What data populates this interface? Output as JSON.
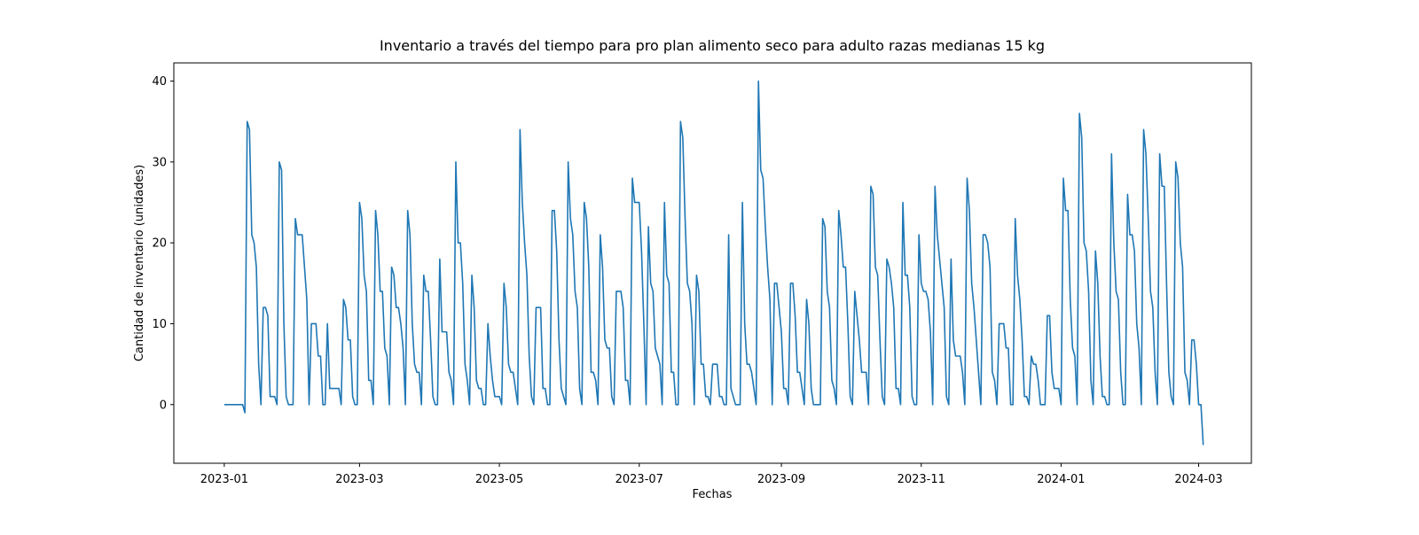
{
  "chart_data": {
    "type": "line",
    "title": "Inventario a través del tiempo para pro plan alimento seco para adulto razas medianas 15 kg",
    "x_label": "Fechas",
    "y_label": "Cantidad de inventario (unidades)",
    "grid": false,
    "xlim": [
      "2022-12-10",
      "2024-03-24"
    ],
    "ylim": [
      -7.25,
      42.25
    ],
    "xticks": [
      {
        "value": "2023-01-01",
        "label": "2023-01"
      },
      {
        "value": "2023-03-01",
        "label": "2023-03"
      },
      {
        "value": "2023-05-01",
        "label": "2023-05"
      },
      {
        "value": "2023-07-01",
        "label": "2023-07"
      },
      {
        "value": "2023-09-01",
        "label": "2023-09"
      },
      {
        "value": "2023-11-01",
        "label": "2023-11"
      },
      {
        "value": "2024-01-01",
        "label": "2024-01"
      },
      {
        "value": "2024-03-01",
        "label": "2024-03"
      }
    ],
    "yticks": [
      0,
      10,
      20,
      30,
      40
    ],
    "x": [
      "2023-01-01",
      "2023-01-02",
      "2023-01-03",
      "2023-01-04",
      "2023-01-05",
      "2023-01-06",
      "2023-01-07",
      "2023-01-08",
      "2023-01-09",
      "2023-01-10",
      "2023-01-11",
      "2023-01-12",
      "2023-01-13",
      "2023-01-14",
      "2023-01-15",
      "2023-01-16",
      "2023-01-17",
      "2023-01-18",
      "2023-01-19",
      "2023-01-20",
      "2023-01-21",
      "2023-01-22",
      "2023-01-23",
      "2023-01-24",
      "2023-01-25",
      "2023-01-26",
      "2023-01-27",
      "2023-01-28",
      "2023-01-29",
      "2023-01-30",
      "2023-01-31",
      "2023-02-01",
      "2023-02-02",
      "2023-02-03",
      "2023-02-04",
      "2023-02-05",
      "2023-02-06",
      "2023-02-07",
      "2023-02-08",
      "2023-02-09",
      "2023-02-10",
      "2023-02-11",
      "2023-02-12",
      "2023-02-13",
      "2023-02-14",
      "2023-02-15",
      "2023-02-16",
      "2023-02-17",
      "2023-02-18",
      "2023-02-19",
      "2023-02-20",
      "2023-02-21",
      "2023-02-22",
      "2023-02-23",
      "2023-02-24",
      "2023-02-25",
      "2023-02-26",
      "2023-02-27",
      "2023-02-28",
      "2023-03-01",
      "2023-03-02",
      "2023-03-03",
      "2023-03-04",
      "2023-03-05",
      "2023-03-06",
      "2023-03-07",
      "2023-03-08",
      "2023-03-09",
      "2023-03-10",
      "2023-03-11",
      "2023-03-12",
      "2023-03-13",
      "2023-03-14",
      "2023-03-15",
      "2023-03-16",
      "2023-03-17",
      "2023-03-18",
      "2023-03-19",
      "2023-03-20",
      "2023-03-21",
      "2023-03-22",
      "2023-03-23",
      "2023-03-24",
      "2023-03-25",
      "2023-03-26",
      "2023-03-27",
      "2023-03-28",
      "2023-03-29",
      "2023-03-30",
      "2023-03-31",
      "2023-04-01",
      "2023-04-02",
      "2023-04-03",
      "2023-04-04",
      "2023-04-05",
      "2023-04-06",
      "2023-04-07",
      "2023-04-08",
      "2023-04-09",
      "2023-04-10",
      "2023-04-11",
      "2023-04-12",
      "2023-04-13",
      "2023-04-14",
      "2023-04-15",
      "2023-04-16",
      "2023-04-17",
      "2023-04-18",
      "2023-04-19",
      "2023-04-20",
      "2023-04-21",
      "2023-04-22",
      "2023-04-23",
      "2023-04-24",
      "2023-04-25",
      "2023-04-26",
      "2023-04-27",
      "2023-04-28",
      "2023-04-29",
      "2023-04-30",
      "2023-05-01",
      "2023-05-02",
      "2023-05-03",
      "2023-05-04",
      "2023-05-05",
      "2023-05-06",
      "2023-05-07",
      "2023-05-08",
      "2023-05-09",
      "2023-05-10",
      "2023-05-11",
      "2023-05-12",
      "2023-05-13",
      "2023-05-14",
      "2023-05-15",
      "2023-05-16",
      "2023-05-17",
      "2023-05-18",
      "2023-05-19",
      "2023-05-20",
      "2023-05-21",
      "2023-05-22",
      "2023-05-23",
      "2023-05-24",
      "2023-05-25",
      "2023-05-26",
      "2023-05-27",
      "2023-05-28",
      "2023-05-29",
      "2023-05-30",
      "2023-05-31",
      "2023-06-01",
      "2023-06-02",
      "2023-06-03",
      "2023-06-04",
      "2023-06-05",
      "2023-06-06",
      "2023-06-07",
      "2023-06-08",
      "2023-06-09",
      "2023-06-10",
      "2023-06-11",
      "2023-06-12",
      "2023-06-13",
      "2023-06-14",
      "2023-06-15",
      "2023-06-16",
      "2023-06-17",
      "2023-06-18",
      "2023-06-19",
      "2023-06-20",
      "2023-06-21",
      "2023-06-22",
      "2023-06-23",
      "2023-06-24",
      "2023-06-25",
      "2023-06-26",
      "2023-06-27",
      "2023-06-28",
      "2023-06-29",
      "2023-06-30",
      "2023-07-01",
      "2023-07-02",
      "2023-07-03",
      "2023-07-04",
      "2023-07-05",
      "2023-07-06",
      "2023-07-07",
      "2023-07-08",
      "2023-07-09",
      "2023-07-10",
      "2023-07-11",
      "2023-07-12",
      "2023-07-13",
      "2023-07-14",
      "2023-07-15",
      "2023-07-16",
      "2023-07-17",
      "2023-07-18",
      "2023-07-19",
      "2023-07-20",
      "2023-07-21",
      "2023-07-22",
      "2023-07-23",
      "2023-07-24",
      "2023-07-25",
      "2023-07-26",
      "2023-07-27",
      "2023-07-28",
      "2023-07-29",
      "2023-07-30",
      "2023-07-31",
      "2023-08-01",
      "2023-08-02",
      "2023-08-03",
      "2023-08-04",
      "2023-08-05",
      "2023-08-06",
      "2023-08-07",
      "2023-08-08",
      "2023-08-09",
      "2023-08-10",
      "2023-08-11",
      "2023-08-12",
      "2023-08-13",
      "2023-08-14",
      "2023-08-15",
      "2023-08-16",
      "2023-08-17",
      "2023-08-18",
      "2023-08-19",
      "2023-08-20",
      "2023-08-21",
      "2023-08-22",
      "2023-08-23",
      "2023-08-24",
      "2023-08-25",
      "2023-08-26",
      "2023-08-27",
      "2023-08-28",
      "2023-08-29",
      "2023-08-30",
      "2023-08-31",
      "2023-09-01",
      "2023-09-02",
      "2023-09-03",
      "2023-09-04",
      "2023-09-05",
      "2023-09-06",
      "2023-09-07",
      "2023-09-08",
      "2023-09-09",
      "2023-09-10",
      "2023-09-11",
      "2023-09-12",
      "2023-09-13",
      "2023-09-14",
      "2023-09-15",
      "2023-09-16",
      "2023-09-17",
      "2023-09-18",
      "2023-09-19",
      "2023-09-20",
      "2023-09-21",
      "2023-09-22",
      "2023-09-23",
      "2023-09-24",
      "2023-09-25",
      "2023-09-26",
      "2023-09-27",
      "2023-09-28",
      "2023-09-29",
      "2023-09-30",
      "2023-10-01",
      "2023-10-02",
      "2023-10-03",
      "2023-10-04",
      "2023-10-05",
      "2023-10-06",
      "2023-10-07",
      "2023-10-08",
      "2023-10-09",
      "2023-10-10",
      "2023-10-11",
      "2023-10-12",
      "2023-10-13",
      "2023-10-14",
      "2023-10-15",
      "2023-10-16",
      "2023-10-17",
      "2023-10-18",
      "2023-10-19",
      "2023-10-20",
      "2023-10-21",
      "2023-10-22",
      "2023-10-23",
      "2023-10-24",
      "2023-10-25",
      "2023-10-26",
      "2023-10-27",
      "2023-10-28",
      "2023-10-29",
      "2023-10-30",
      "2023-10-31",
      "2023-11-01",
      "2023-11-02",
      "2023-11-03",
      "2023-11-04",
      "2023-11-05",
      "2023-11-06",
      "2023-11-07",
      "2023-11-08",
      "2023-11-09",
      "2023-11-10",
      "2023-11-11",
      "2023-11-12",
      "2023-11-13",
      "2023-11-14",
      "2023-11-15",
      "2023-11-16",
      "2023-11-17",
      "2023-11-18",
      "2023-11-19",
      "2023-11-20",
      "2023-11-21",
      "2023-11-22",
      "2023-11-23",
      "2023-11-24",
      "2023-11-25",
      "2023-11-26",
      "2023-11-27",
      "2023-11-28",
      "2023-11-29",
      "2023-11-30",
      "2023-12-01",
      "2023-12-02",
      "2023-12-03",
      "2023-12-04",
      "2023-12-05",
      "2023-12-06",
      "2023-12-07",
      "2023-12-08",
      "2023-12-09",
      "2023-12-10",
      "2023-12-11",
      "2023-12-12",
      "2023-12-13",
      "2023-12-14",
      "2023-12-15",
      "2023-12-16",
      "2023-12-17",
      "2023-12-18",
      "2023-12-19",
      "2023-12-20",
      "2023-12-21",
      "2023-12-22",
      "2023-12-23",
      "2023-12-24",
      "2023-12-25",
      "2023-12-26",
      "2023-12-27",
      "2023-12-28",
      "2023-12-29",
      "2023-12-30",
      "2023-12-31",
      "2024-01-01",
      "2024-01-02",
      "2024-01-03",
      "2024-01-04",
      "2024-01-05",
      "2024-01-06",
      "2024-01-07",
      "2024-01-08",
      "2024-01-09",
      "2024-01-10",
      "2024-01-11",
      "2024-01-12",
      "2024-01-13",
      "2024-01-14",
      "2024-01-15",
      "2024-01-16",
      "2024-01-17",
      "2024-01-18",
      "2024-01-19",
      "2024-01-20",
      "2024-01-21",
      "2024-01-22",
      "2024-01-23",
      "2024-01-24",
      "2024-01-25",
      "2024-01-26",
      "2024-01-27",
      "2024-01-28",
      "2024-01-29",
      "2024-01-30",
      "2024-01-31",
      "2024-02-01",
      "2024-02-02",
      "2024-02-03",
      "2024-02-04",
      "2024-02-05",
      "2024-02-06",
      "2024-02-07",
      "2024-02-08",
      "2024-02-09",
      "2024-02-10",
      "2024-02-11",
      "2024-02-12",
      "2024-02-13",
      "2024-02-14",
      "2024-02-15",
      "2024-02-16",
      "2024-02-17",
      "2024-02-18",
      "2024-02-19",
      "2024-02-20",
      "2024-02-21",
      "2024-02-22",
      "2024-02-23",
      "2024-02-24",
      "2024-02-25",
      "2024-02-26",
      "2024-02-27",
      "2024-02-28",
      "2024-02-29",
      "2024-03-01",
      "2024-03-02",
      "2024-03-03"
    ],
    "series": [
      {
        "color": "#1f77b4",
        "values": [
          0,
          0,
          0,
          0,
          0,
          0,
          0,
          0,
          0,
          -1,
          35,
          34,
          21,
          20,
          17,
          5,
          0,
          12,
          12,
          11,
          1,
          1,
          1,
          0,
          30,
          29,
          10,
          1,
          0,
          0,
          0,
          23,
          21,
          21,
          21,
          17,
          13,
          0,
          10,
          10,
          10,
          6,
          6,
          0,
          0,
          10,
          2,
          2,
          2,
          2,
          2,
          0,
          13,
          12,
          8,
          8,
          1,
          0,
          0,
          25,
          23,
          16,
          14,
          3,
          3,
          0,
          24,
          21,
          14,
          14,
          7,
          6,
          0,
          17,
          16,
          12,
          12,
          10,
          7,
          0,
          24,
          21,
          10,
          5,
          4,
          4,
          0,
          16,
          14,
          14,
          8,
          1,
          0,
          0,
          18,
          9,
          9,
          9,
          4,
          3,
          0,
          30,
          20,
          20,
          15,
          5,
          3,
          0,
          16,
          12,
          3,
          2,
          2,
          0,
          0,
          10,
          6,
          3,
          1,
          1,
          1,
          0,
          15,
          12,
          5,
          4,
          4,
          2,
          0,
          34,
          25,
          20,
          16,
          6,
          1,
          0,
          12,
          12,
          12,
          2,
          2,
          0,
          0,
          24,
          24,
          19,
          8,
          2,
          1,
          0,
          30,
          23,
          21,
          14,
          12,
          2,
          0,
          25,
          23,
          17,
          4,
          4,
          3,
          0,
          21,
          17,
          8,
          7,
          7,
          1,
          0,
          14,
          14,
          14,
          12,
          3,
          3,
          0,
          28,
          25,
          25,
          25,
          19,
          10,
          0,
          22,
          15,
          14,
          7,
          6,
          5,
          0,
          25,
          16,
          15,
          4,
          4,
          0,
          0,
          35,
          33,
          23,
          15,
          14,
          10,
          0,
          16,
          14,
          5,
          5,
          1,
          1,
          0,
          5,
          5,
          5,
          1,
          1,
          0,
          0,
          21,
          2,
          1,
          0,
          0,
          0,
          25,
          10,
          5,
          5,
          4,
          2,
          0,
          40,
          29,
          28,
          22,
          17,
          13,
          0,
          15,
          15,
          12,
          9,
          2,
          2,
          0,
          15,
          15,
          11,
          4,
          4,
          2,
          0,
          13,
          10,
          2,
          0,
          0,
          0,
          0,
          23,
          22,
          14,
          12,
          3,
          2,
          0,
          24,
          21,
          17,
          17,
          10,
          1,
          0,
          14,
          11,
          8,
          4,
          4,
          4,
          0,
          27,
          26,
          17,
          16,
          8,
          1,
          0,
          18,
          17,
          15,
          12,
          2,
          2,
          0,
          25,
          16,
          16,
          12,
          1,
          0,
          0,
          21,
          15,
          14,
          14,
          13,
          9,
          0,
          27,
          21,
          18,
          15,
          12,
          1,
          0,
          18,
          8,
          6,
          6,
          6,
          4,
          0,
          28,
          24,
          15,
          12,
          8,
          4,
          0,
          21,
          21,
          20,
          17,
          4,
          3,
          0,
          10,
          10,
          10,
          7,
          7,
          0,
          0,
          23,
          16,
          13,
          8,
          1,
          1,
          0,
          6,
          5,
          5,
          3,
          0,
          0,
          0,
          11,
          11,
          4,
          2,
          2,
          2,
          0,
          28,
          24,
          24,
          13,
          7,
          6,
          0,
          36,
          33,
          20,
          19,
          14,
          3,
          0,
          19,
          15,
          6,
          1,
          1,
          0,
          0,
          31,
          20,
          14,
          13,
          4,
          0,
          0,
          26,
          21,
          21,
          19,
          10,
          7,
          0,
          34,
          31,
          23,
          14,
          12,
          4,
          0,
          31,
          27,
          27,
          15,
          4,
          1,
          0,
          30,
          28,
          20,
          17,
          4,
          3,
          0,
          8,
          8,
          5,
          0,
          0,
          -5
        ]
      }
    ]
  }
}
